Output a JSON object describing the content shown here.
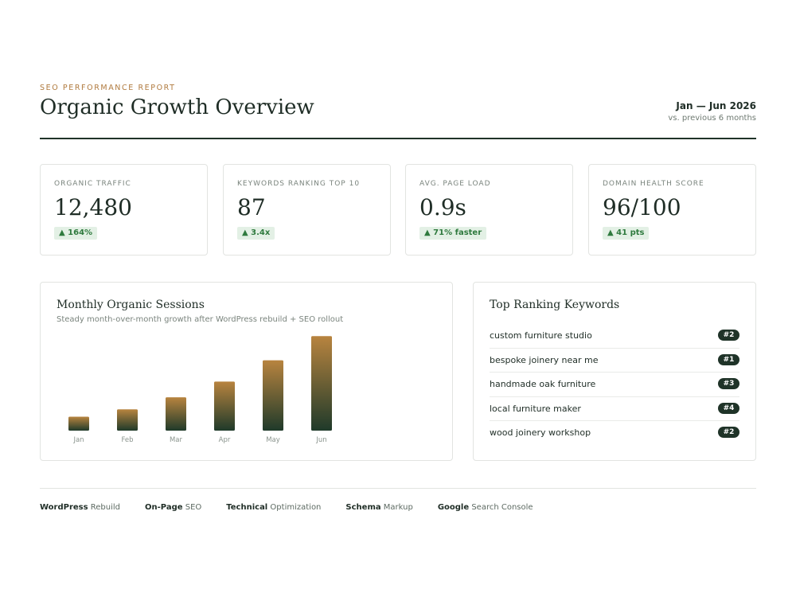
{
  "header": {
    "eyebrow": "SEO PERFORMANCE REPORT",
    "title": "Organic Growth Overview",
    "period_range": "Jan — Jun 2026",
    "period_sub": "vs. previous 6 months"
  },
  "kpis": [
    {
      "label": "ORGANIC TRAFFIC",
      "value": "12,480",
      "delta": "▲ 164%"
    },
    {
      "label": "KEYWORDS RANKING TOP 10",
      "value": "87",
      "delta": "▲ 3.4x"
    },
    {
      "label": "AVG. PAGE LOAD",
      "value": "0.9s",
      "delta": "▲ 71% faster"
    },
    {
      "label": "DOMAIN HEALTH SCORE",
      "value": "96/100",
      "delta": "▲ 41 pts"
    }
  ],
  "chart_panel": {
    "title": "Monthly Organic Sessions",
    "subtitle": "Steady month-over-month growth after WordPress rebuild + SEO rollout"
  },
  "chart_data": {
    "type": "bar",
    "categories": [
      "Jan",
      "Feb",
      "Mar",
      "Apr",
      "May",
      "Jun"
    ],
    "values": [
      15,
      23,
      36,
      53,
      76,
      102
    ],
    "ylim": [
      0,
      110
    ],
    "grid": false,
    "colors": {
      "top": "#b8843f",
      "bottom": "#1f3a2a"
    }
  },
  "keywords_panel": {
    "title": "Top Ranking Keywords",
    "items": [
      {
        "keyword": "custom furniture studio",
        "rank": "#2"
      },
      {
        "keyword": "bespoke joinery near me",
        "rank": "#1"
      },
      {
        "keyword": "handmade oak furniture",
        "rank": "#3"
      },
      {
        "keyword": "local furniture maker",
        "rank": "#4"
      },
      {
        "keyword": "wood joinery workshop",
        "rank": "#2"
      }
    ]
  },
  "footer": [
    {
      "bold": "WordPress",
      "text": " Rebuild"
    },
    {
      "bold": "On-Page",
      "text": " SEO"
    },
    {
      "bold": "Technical",
      "text": " Optimization"
    },
    {
      "bold": "Schema",
      "text": " Markup"
    },
    {
      "bold": "Google",
      "text": " Search Console"
    }
  ]
}
